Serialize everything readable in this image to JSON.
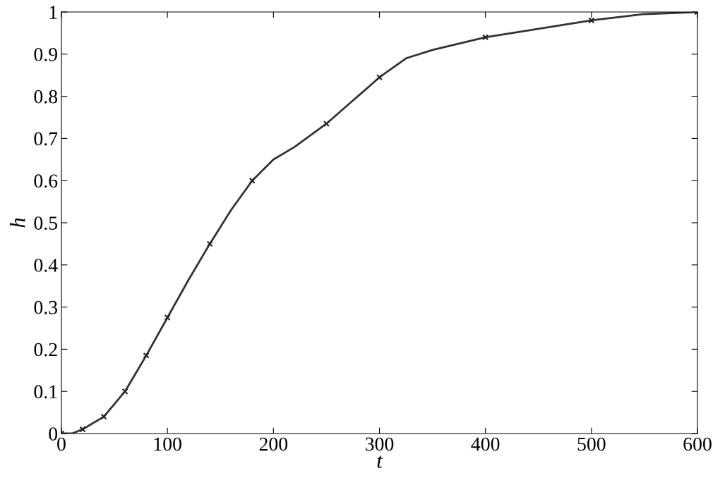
{
  "chart_data": {
    "type": "line",
    "xlabel": "t",
    "ylabel": "h",
    "series": [
      {
        "color": "#333333",
        "marker": "none",
        "line_style": "solid",
        "x": [
          0,
          10,
          20,
          40,
          60,
          80,
          100,
          120,
          140,
          160,
          180,
          200,
          220,
          250,
          275,
          300,
          325,
          350,
          400,
          450,
          500,
          550,
          600
        ],
        "values": [
          0,
          0,
          0.01,
          0.04,
          0.1,
          0.185,
          0.275,
          0.365,
          0.45,
          0.53,
          0.6,
          0.65,
          0.68,
          0.735,
          0.79,
          0.845,
          0.89,
          0.91,
          0.94,
          0.96,
          0.98,
          0.995,
          1.0
        ]
      },
      {
        "type": "scatter",
        "color": "#222222",
        "marker": "cross",
        "x": [
          0,
          20,
          40,
          60,
          80,
          100,
          140,
          180,
          250,
          300,
          400,
          500,
          600
        ],
        "values": [
          0,
          0.01,
          0.04,
          0.1,
          0.185,
          0.275,
          0.45,
          0.6,
          0.735,
          0.845,
          0.94,
          0.98,
          1.0
        ]
      }
    ],
    "xlim": [
      0,
      600
    ],
    "xticks": [
      0,
      100,
      200,
      300,
      400,
      500,
      600
    ],
    "ylim": [
      0,
      1
    ],
    "yticks": [
      0,
      0.1,
      0.2,
      0.3,
      0.4,
      0.5,
      0.6,
      0.7,
      0.8,
      0.9,
      1
    ],
    "grid": false,
    "legend": false
  }
}
